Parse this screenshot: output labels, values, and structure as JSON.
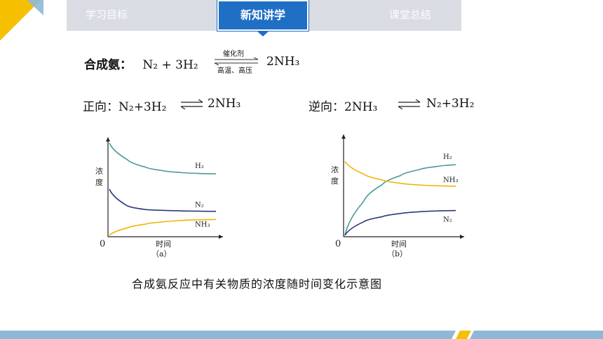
{
  "nav": {
    "tabs": [
      "学习目标",
      "新知讲学",
      "课堂总结"
    ],
    "active_index": 1
  },
  "synthesis": {
    "label": "合成氨：",
    "left": "N₂ + 3H₂",
    "condition_top": "催化剂",
    "condition_bottom": "高温、高压",
    "right": "2NH₃"
  },
  "forward": {
    "label": "正向：",
    "left": "N₂+3H₂",
    "right": "2NH₃"
  },
  "reverse": {
    "label": "逆向：",
    "left": "2NH₃",
    "right": "N₂+3H₂"
  },
  "chart_data": [
    {
      "type": "line",
      "ylabel": "浓度",
      "xlabel": "时间",
      "origin_label": "0",
      "panel_label": "（a）",
      "series": [
        {
          "name": "H₂",
          "color": "#4a9a9a",
          "values": [
            1.0,
            0.82,
            0.74,
            0.7,
            0.68,
            0.67,
            0.665
          ]
        },
        {
          "name": "N₂",
          "color": "#2b3a7a",
          "values": [
            0.5,
            0.32,
            0.28,
            0.27,
            0.265,
            0.262,
            0.26
          ]
        },
        {
          "name": "NH₃",
          "color": "#f0b400",
          "values": [
            0.0,
            0.08,
            0.12,
            0.145,
            0.16,
            0.168,
            0.172
          ]
        }
      ]
    },
    {
      "type": "line",
      "ylabel": "浓度",
      "xlabel": "时间",
      "origin_label": "0",
      "panel_label": "（b）",
      "series": [
        {
          "name": "H₂",
          "color": "#4a9a9a",
          "values": [
            0.0,
            0.4,
            0.6,
            0.71,
            0.78,
            0.82,
            0.84
          ]
        },
        {
          "name": "NH₃",
          "color": "#f0b400",
          "values": [
            0.88,
            0.73,
            0.66,
            0.62,
            0.6,
            0.59,
            0.585
          ]
        },
        {
          "name": "N₂",
          "color": "#2b3a7a",
          "values": [
            0.0,
            0.16,
            0.22,
            0.26,
            0.28,
            0.29,
            0.295
          ]
        }
      ]
    }
  ],
  "caption": "合成氨反应中有关物质的浓度随时间变化示意图",
  "colors": {
    "accent": "#1f6fc4",
    "corner_yellow": "#f5c000",
    "footer_blue": "#8fb8d8",
    "footer_yellow": "#f5c000"
  }
}
